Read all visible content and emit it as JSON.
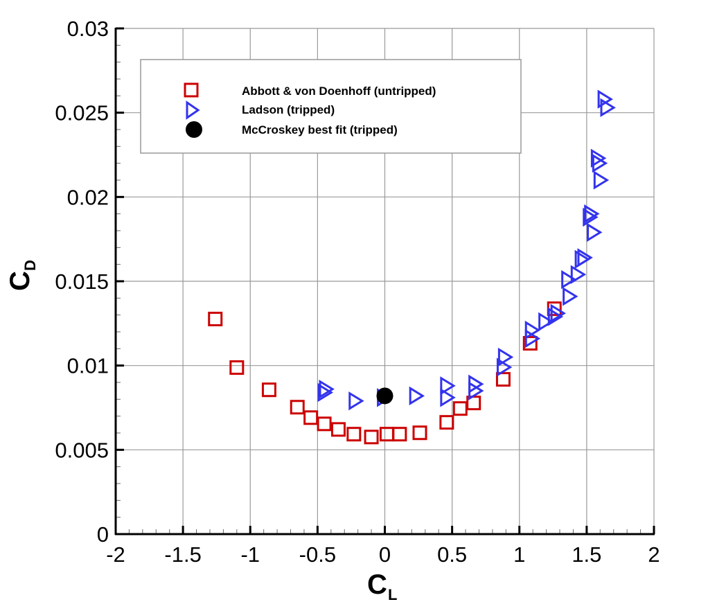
{
  "chart_data": {
    "type": "scatter",
    "title": "",
    "xlabel": "C_L",
    "ylabel": "C_D",
    "xlabel_main": "C",
    "xlabel_sub": "L",
    "ylabel_main": "C",
    "ylabel_sub": "D",
    "xlim": [
      -2,
      2
    ],
    "ylim": [
      0,
      0.03
    ],
    "x_ticks": [
      -2,
      -1.5,
      -1,
      -0.5,
      0,
      0.5,
      1,
      1.5,
      2
    ],
    "x_tick_labels": [
      "-2",
      "-1.5",
      "-1",
      "-0.5",
      "0",
      "0.5",
      "1",
      "1.5",
      "2"
    ],
    "y_ticks": [
      0,
      0.005,
      0.01,
      0.015,
      0.02,
      0.025,
      0.03
    ],
    "y_tick_labels": [
      "0",
      "0.005",
      "0.01",
      "0.015",
      "0.02",
      "0.025",
      "0.03"
    ],
    "x_minor_step": 0.1,
    "y_minor_step": 0.001,
    "grid": true,
    "legend_position": "upper-left-inside",
    "series": [
      {
        "name": "Abbott & von Doenhoff (untripped)",
        "marker": "square-open",
        "color": "#cc0000",
        "x": [
          -1.26,
          -1.1,
          -0.86,
          -0.65,
          -0.55,
          -0.45,
          -0.345,
          -0.23,
          -0.1,
          0.015,
          0.11,
          0.26,
          0.46,
          0.56,
          0.66,
          0.88,
          1.08,
          1.26
        ],
        "y": [
          0.01276,
          0.00988,
          0.00856,
          0.00753,
          0.00691,
          0.00654,
          0.00621,
          0.00593,
          0.00576,
          0.00593,
          0.00593,
          0.00601,
          0.00663,
          0.00745,
          0.00778,
          0.00918,
          0.01132,
          0.01337
        ]
      },
      {
        "name": "Ladson (tripped)",
        "marker": "triangle-right-open",
        "color": "#3333ee",
        "x": [
          -0.44,
          -0.45,
          -0.22,
          -0.01,
          0.23,
          0.46,
          0.46,
          0.67,
          0.67,
          0.89,
          0.88,
          1.09,
          1.09,
          1.19,
          1.26,
          1.28,
          1.37,
          1.36,
          1.43,
          1.46,
          1.48,
          1.55,
          1.53,
          1.52,
          1.6,
          1.59,
          1.58,
          1.65,
          1.63
        ],
        "y": [
          0.0086,
          0.0084,
          0.0079,
          0.0081,
          0.0082,
          0.0088,
          0.0081,
          0.0089,
          0.0085,
          0.0105,
          0.0099,
          0.0121,
          0.0116,
          0.0126,
          0.0129,
          0.0131,
          0.0141,
          0.0151,
          0.0154,
          0.0163,
          0.0164,
          0.0179,
          0.019,
          0.0188,
          0.021,
          0.022,
          0.0223,
          0.0253,
          0.0258
        ]
      },
      {
        "name": "McCroskey best fit (tripped)",
        "marker": "circle-filled",
        "color": "#000000",
        "x": [
          0.0
        ],
        "y": [
          0.0082
        ]
      }
    ]
  },
  "legend": {
    "items": [
      {
        "label": "Abbott & von Doenhoff (untripped)",
        "marker": "square-open",
        "color": "#cc0000"
      },
      {
        "label": "Ladson (tripped)",
        "marker": "triangle-right-open",
        "color": "#3333ee"
      },
      {
        "label": "McCroskey best fit (tripped)",
        "marker": "circle-filled",
        "color": "#000000"
      }
    ]
  },
  "colors": {
    "grid": "#999999",
    "axis": "#000000",
    "legend_border": "#999999"
  }
}
